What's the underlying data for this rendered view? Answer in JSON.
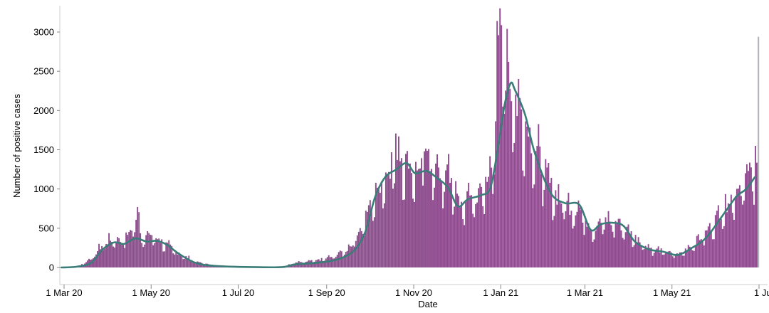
{
  "chart_data": {
    "type": "bar",
    "title": "",
    "xlabel": "Date",
    "ylabel": "Number of positive cases",
    "x_range": [
      "2020-02-28",
      "2021-07-01"
    ],
    "ylim": [
      -100,
      3200
    ],
    "y_ticks": [
      0,
      500,
      1000,
      1500,
      2000,
      2500,
      3000
    ],
    "x_ticks": [
      {
        "date": "2020-03-01",
        "label": "1 Mar 20"
      },
      {
        "date": "2020-05-01",
        "label": "1 May 20"
      },
      {
        "date": "2020-07-01",
        "label": "1 Jul 20"
      },
      {
        "date": "2020-09-01",
        "label": "1 Sep 20"
      },
      {
        "date": "2020-11-01",
        "label": "1 Nov 20"
      },
      {
        "date": "2021-01-01",
        "label": "1 Jan 21"
      },
      {
        "date": "2021-03-01",
        "label": "1 Mar 21"
      },
      {
        "date": "2021-05-01",
        "label": "1 May 21"
      },
      {
        "date": "2021-07-01",
        "label": "1 Ju"
      }
    ],
    "grid": false,
    "legend": "none",
    "colors": {
      "bars": "#8e4b8e",
      "incomplete_bars": "#b8b3bf",
      "rolling_average": "#3a7d78"
    },
    "series": [
      {
        "kind": "bar",
        "period": "daily",
        "key_points": [
          [
            "2020-02-28",
            0
          ],
          [
            "2020-03-10",
            10
          ],
          [
            "2020-03-20",
            120
          ],
          [
            "2020-03-28",
            300
          ],
          [
            "2020-04-05",
            370
          ],
          [
            "2020-04-10",
            330
          ],
          [
            "2020-04-18",
            500
          ],
          [
            "2020-04-21",
            770
          ],
          [
            "2020-04-24",
            360
          ],
          [
            "2020-04-30",
            420
          ],
          [
            "2020-05-08",
            330
          ],
          [
            "2020-05-20",
            180
          ],
          [
            "2020-06-01",
            70
          ],
          [
            "2020-06-15",
            20
          ],
          [
            "2020-07-10",
            5
          ],
          [
            "2020-08-01",
            10
          ],
          [
            "2020-08-10",
            60
          ],
          [
            "2020-08-25",
            90
          ],
          [
            "2020-09-05",
            140
          ],
          [
            "2020-09-15",
            230
          ],
          [
            "2020-09-25",
            500
          ],
          [
            "2020-10-05",
            950
          ],
          [
            "2020-10-15",
            1300
          ],
          [
            "2020-10-20",
            1550
          ],
          [
            "2020-10-25",
            1350
          ],
          [
            "2020-11-05",
            1200
          ],
          [
            "2020-11-12",
            1400
          ],
          [
            "2020-11-20",
            1150
          ],
          [
            "2020-11-25",
            1200
          ],
          [
            "2020-12-03",
            800
          ],
          [
            "2020-12-10",
            900
          ],
          [
            "2020-12-20",
            950
          ],
          [
            "2020-12-26",
            1400
          ],
          [
            "2020-12-30",
            2900
          ],
          [
            "2021-01-04",
            2600
          ],
          [
            "2021-01-06",
            2300
          ],
          [
            "2021-01-15",
            2000
          ],
          [
            "2021-01-25",
            1500
          ],
          [
            "2021-02-05",
            1000
          ],
          [
            "2021-02-15",
            800
          ],
          [
            "2021-02-25",
            750
          ],
          [
            "2021-03-05",
            500
          ],
          [
            "2021-03-15",
            600
          ],
          [
            "2021-03-25",
            550
          ],
          [
            "2021-04-05",
            380
          ],
          [
            "2021-04-15",
            250
          ],
          [
            "2021-04-25",
            200
          ],
          [
            "2021-05-05",
            160
          ],
          [
            "2021-05-15",
            300
          ],
          [
            "2021-05-25",
            450
          ],
          [
            "2021-06-05",
            750
          ],
          [
            "2021-06-15",
            1000
          ],
          [
            "2021-06-25",
            1200
          ],
          [
            "2021-06-30",
            1450
          ]
        ],
        "spikes": [
          [
            "2020-04-21",
            770
          ],
          [
            "2020-10-21",
            1670
          ],
          [
            "2020-11-08",
            1480
          ],
          [
            "2020-12-29",
            3140
          ],
          [
            "2020-12-30",
            2960
          ],
          [
            "2021-01-05",
            3040
          ],
          [
            "2021-01-06",
            2620
          ],
          [
            "2021-06-28",
            1550
          ]
        ]
      },
      {
        "kind": "bar",
        "period": "incomplete",
        "values": [
          [
            "2021-07-01",
            2940
          ]
        ]
      },
      {
        "kind": "line",
        "period": "rolling average",
        "points": [
          [
            "2020-02-28",
            0
          ],
          [
            "2020-03-10",
            10
          ],
          [
            "2020-03-20",
            60
          ],
          [
            "2020-03-28",
            230
          ],
          [
            "2020-04-05",
            320
          ],
          [
            "2020-04-12",
            300
          ],
          [
            "2020-04-20",
            370
          ],
          [
            "2020-04-28",
            330
          ],
          [
            "2020-05-05",
            340
          ],
          [
            "2020-05-12",
            290
          ],
          [
            "2020-05-20",
            180
          ],
          [
            "2020-06-01",
            60
          ],
          [
            "2020-06-15",
            20
          ],
          [
            "2020-07-10",
            5
          ],
          [
            "2020-08-01",
            5
          ],
          [
            "2020-08-10",
            40
          ],
          [
            "2020-08-25",
            60
          ],
          [
            "2020-09-08",
            100
          ],
          [
            "2020-09-20",
            210
          ],
          [
            "2020-09-28",
            450
          ],
          [
            "2020-10-05",
            900
          ],
          [
            "2020-10-12",
            1150
          ],
          [
            "2020-10-20",
            1250
          ],
          [
            "2020-10-27",
            1330
          ],
          [
            "2020-11-02",
            1200
          ],
          [
            "2020-11-10",
            1230
          ],
          [
            "2020-11-18",
            1130
          ],
          [
            "2020-11-25",
            1020
          ],
          [
            "2020-12-02",
            780
          ],
          [
            "2020-12-09",
            870
          ],
          [
            "2020-12-18",
            920
          ],
          [
            "2020-12-25",
            1030
          ],
          [
            "2020-12-31",
            1650
          ],
          [
            "2021-01-04",
            2100
          ],
          [
            "2021-01-08",
            2350
          ],
          [
            "2021-01-11",
            2260
          ],
          [
            "2021-01-18",
            1950
          ],
          [
            "2021-01-25",
            1450
          ],
          [
            "2021-02-05",
            950
          ],
          [
            "2021-02-15",
            820
          ],
          [
            "2021-02-25",
            800
          ],
          [
            "2021-03-05",
            480
          ],
          [
            "2021-03-12",
            550
          ],
          [
            "2021-03-20",
            570
          ],
          [
            "2021-03-28",
            530
          ],
          [
            "2021-04-05",
            330
          ],
          [
            "2021-04-15",
            230
          ],
          [
            "2021-04-25",
            200
          ],
          [
            "2021-05-05",
            160
          ],
          [
            "2021-05-15",
            250
          ],
          [
            "2021-05-25",
            380
          ],
          [
            "2021-06-05",
            650
          ],
          [
            "2021-06-15",
            900
          ],
          [
            "2021-06-22",
            1000
          ],
          [
            "2021-06-28",
            1150
          ]
        ]
      }
    ]
  }
}
